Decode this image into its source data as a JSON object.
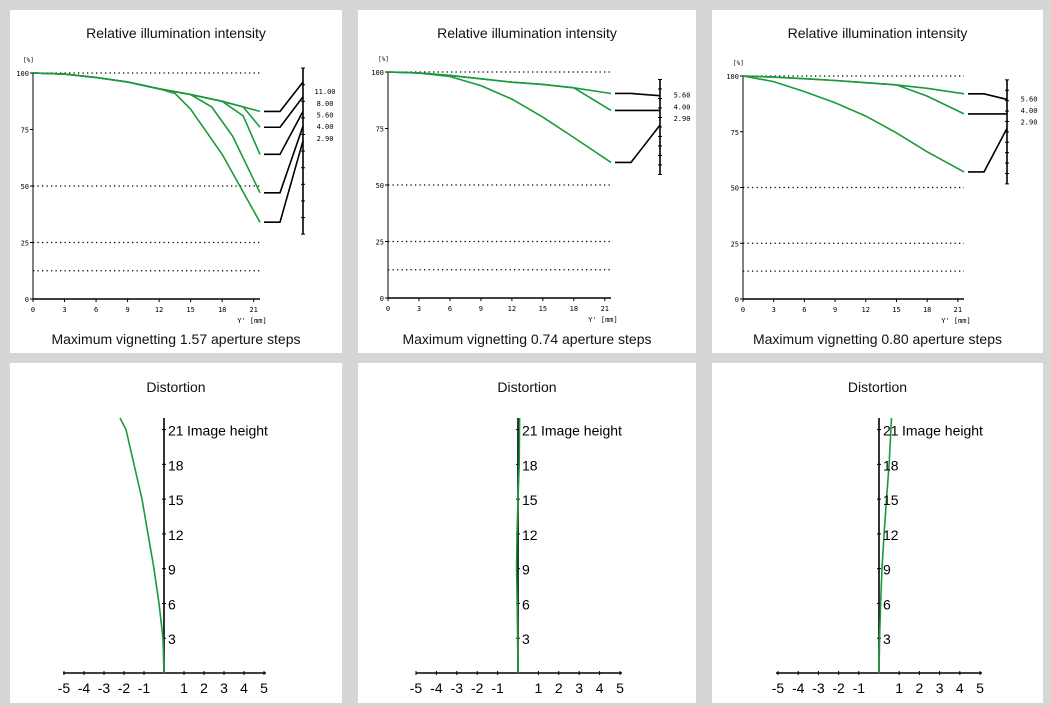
{
  "colors": {
    "curve": "#1a9a3a",
    "axis": "#000000",
    "background": "#d6d6d6",
    "panel": "#ffffff"
  },
  "illumination_title": "Relative illumination intensity",
  "distortion_title": "Distortion",
  "captions": [
    "Maximum vignetting 1.57 aperture steps",
    "Maximum vignetting 0.74 aperture steps",
    "Maximum vignetting 0.80 aperture steps"
  ],
  "chart_data": [
    {
      "type": "line",
      "title": "Relative illumination intensity",
      "ylabel": "[%]",
      "xlabel": "Y' [mm]",
      "xticks": [
        0,
        3,
        6,
        9,
        12,
        15,
        18,
        21
      ],
      "yticks": [
        0,
        25,
        50,
        75,
        100
      ],
      "xlim": [
        0,
        21.6
      ],
      "ylim": [
        0,
        100
      ],
      "dotted_lines": [
        100,
        50,
        25,
        12.5
      ],
      "apertures": [
        "11.00",
        "8.00",
        "5.60",
        "4.00",
        "2.90"
      ],
      "series": [
        {
          "name": "11.00",
          "x": [
            0,
            3,
            6,
            9,
            12,
            15,
            18,
            20,
            21.6
          ],
          "y": [
            100,
            99.5,
            98,
            96,
            93,
            90.5,
            87.5,
            85,
            83
          ]
        },
        {
          "name": "8.00",
          "x": [
            0,
            3,
            6,
            9,
            12,
            15,
            18,
            20,
            21.6
          ],
          "y": [
            100,
            99.5,
            98,
            96,
            93,
            90.5,
            87.5,
            85,
            76
          ]
        },
        {
          "name": "5.60",
          "x": [
            0,
            3,
            6,
            9,
            12,
            15,
            18,
            20,
            21.6
          ],
          "y": [
            100,
            99.5,
            98,
            96,
            93,
            90.5,
            87.5,
            81,
            64
          ]
        },
        {
          "name": "4.00",
          "x": [
            0,
            3,
            6,
            9,
            12,
            15,
            17,
            19,
            21.6
          ],
          "y": [
            100,
            99.5,
            98,
            96,
            93,
            90.5,
            85,
            72,
            47
          ]
        },
        {
          "name": "2.90",
          "x": [
            0,
            3,
            6,
            9,
            12,
            13.5,
            15,
            18,
            21.6
          ],
          "y": [
            100,
            99.5,
            98,
            96,
            93,
            91,
            84,
            64,
            34
          ]
        }
      ]
    },
    {
      "type": "line",
      "title": "Relative illumination intensity",
      "ylabel": "[%]",
      "xlabel": "Y' [mm]",
      "xticks": [
        0,
        3,
        6,
        9,
        12,
        15,
        18,
        21
      ],
      "yticks": [
        0,
        25,
        50,
        75,
        100
      ],
      "xlim": [
        0,
        21.6
      ],
      "ylim": [
        0,
        100
      ],
      "dotted_lines": [
        100,
        50,
        25,
        12.5
      ],
      "apertures": [
        "5.60",
        "4.00",
        "2.90"
      ],
      "series": [
        {
          "name": "5.60",
          "x": [
            0,
            3,
            6,
            9,
            12,
            15,
            18,
            21.6
          ],
          "y": [
            100,
            99.6,
            98.5,
            97,
            95.5,
            94.5,
            93,
            90.5
          ]
        },
        {
          "name": "4.00",
          "x": [
            0,
            3,
            6,
            9,
            12,
            15,
            18,
            21.6
          ],
          "y": [
            100,
            99.6,
            98.5,
            97,
            95.5,
            94.5,
            93,
            83
          ]
        },
        {
          "name": "2.90",
          "x": [
            0,
            3,
            6,
            9,
            12,
            15,
            18,
            21.6
          ],
          "y": [
            100,
            99.5,
            98,
            94,
            88,
            80,
            71,
            60
          ]
        }
      ]
    },
    {
      "type": "line",
      "title": "Relative illumination intensity",
      "ylabel": "[%]",
      "xlabel": "Y' [mm]",
      "xticks": [
        0,
        3,
        6,
        9,
        12,
        15,
        18,
        21
      ],
      "yticks": [
        0,
        25,
        50,
        75,
        100
      ],
      "xlim": [
        0,
        21.6
      ],
      "ylim": [
        0,
        100
      ],
      "dotted_lines": [
        100,
        50,
        25,
        12.5
      ],
      "apertures": [
        "5.60",
        "4.00",
        "2.90"
      ],
      "series": [
        {
          "name": "5.60",
          "x": [
            0,
            3,
            6,
            9,
            12,
            15,
            18,
            21.6
          ],
          "y": [
            100,
            99.5,
            98.8,
            98,
            97,
            96,
            94.5,
            92
          ]
        },
        {
          "name": "4.00",
          "x": [
            0,
            3,
            6,
            9,
            12,
            15,
            18,
            21.6
          ],
          "y": [
            100,
            99.5,
            98.8,
            98,
            97,
            96,
            91,
            83
          ]
        },
        {
          "name": "2.90",
          "x": [
            0,
            3,
            6,
            9,
            12,
            15,
            18,
            21.6
          ],
          "y": [
            100,
            97.5,
            93,
            88,
            82,
            74.5,
            66,
            57
          ]
        }
      ]
    },
    {
      "type": "line",
      "title": "Distortion",
      "xticks": [
        -5,
        -4,
        -3,
        -2,
        -1,
        1,
        2,
        3,
        4,
        5
      ],
      "yticks": [
        3,
        6,
        9,
        12,
        15,
        18,
        21
      ],
      "top_label": "Image height",
      "xlim": [
        -5,
        5
      ],
      "ylim": [
        0,
        22
      ],
      "series": [
        {
          "x": [
            0,
            -0.05,
            -0.25,
            -0.5,
            -0.8,
            -1.1,
            -1.5,
            -1.9,
            -2.2
          ],
          "y": [
            0,
            3,
            6,
            9,
            12,
            15,
            18,
            21,
            22
          ]
        }
      ]
    },
    {
      "type": "line",
      "title": "Distortion",
      "xticks": [
        -5,
        -4,
        -3,
        -2,
        -1,
        1,
        2,
        3,
        4,
        5
      ],
      "yticks": [
        3,
        6,
        9,
        12,
        15,
        18,
        21
      ],
      "top_label": "Image height",
      "xlim": [
        -5,
        5
      ],
      "ylim": [
        0,
        22
      ],
      "series": [
        {
          "x": [
            0,
            -0.02,
            -0.04,
            -0.07,
            -0.05,
            0,
            0.06,
            0.08
          ],
          "y": [
            0,
            3,
            6,
            9,
            12,
            15,
            18,
            22
          ]
        }
      ]
    },
    {
      "type": "line",
      "title": "Distortion",
      "xticks": [
        -5,
        -4,
        -3,
        -2,
        -1,
        1,
        2,
        3,
        4,
        5
      ],
      "yticks": [
        3,
        6,
        9,
        12,
        15,
        18,
        21
      ],
      "top_label": "Image height",
      "xlim": [
        -5,
        5
      ],
      "ylim": [
        0,
        22
      ],
      "series": [
        {
          "x": [
            0,
            0.03,
            0.08,
            0.15,
            0.25,
            0.37,
            0.5,
            0.62
          ],
          "y": [
            0,
            3,
            6,
            9,
            12,
            15,
            18,
            22
          ]
        }
      ]
    }
  ]
}
